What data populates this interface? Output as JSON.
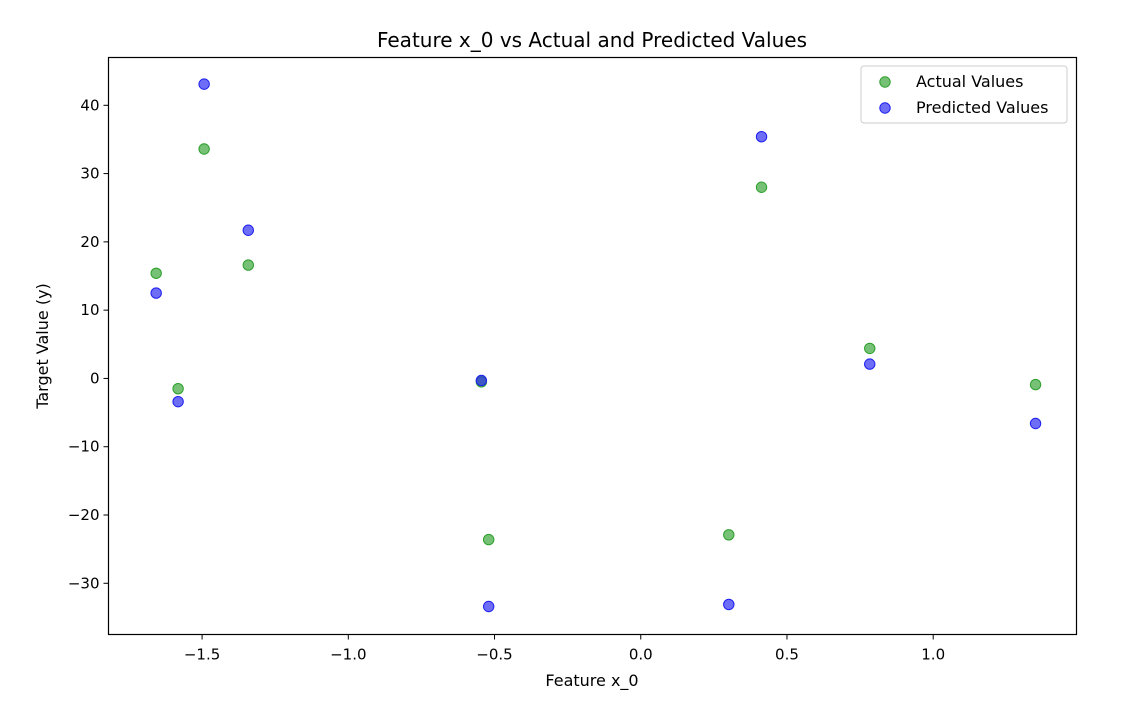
{
  "chart_data": {
    "type": "scatter",
    "title": "Feature x_0 vs Actual and Predicted Values",
    "xlabel": "Feature x_0",
    "ylabel": "Target Value (y)",
    "xlim": [
      -1.82,
      1.49
    ],
    "ylim": [
      -37.5,
      47
    ],
    "xticks": [
      -1.5,
      -1.0,
      -0.5,
      0.0,
      0.5,
      1.0
    ],
    "xtick_labels": [
      "−1.5",
      "−1.0",
      "−0.5",
      "0.0",
      "0.5",
      "1.0"
    ],
    "yticks": [
      -30,
      -20,
      -10,
      0,
      10,
      20,
      30,
      40
    ],
    "ytick_labels": [
      "−30",
      "−20",
      "−10",
      "0",
      "10",
      "20",
      "30",
      "40"
    ],
    "grid": false,
    "legend_position": "top-right",
    "series": [
      {
        "name": "Actual Values",
        "color": "#2ca02c",
        "points": [
          {
            "x": -1.657,
            "y": 15.4
          },
          {
            "x": -1.582,
            "y": -1.5
          },
          {
            "x": -1.493,
            "y": 33.6
          },
          {
            "x": -1.342,
            "y": 16.6
          },
          {
            "x": -0.545,
            "y": -0.5
          },
          {
            "x": -0.52,
            "y": -23.6
          },
          {
            "x": 0.301,
            "y": -22.9
          },
          {
            "x": 0.413,
            "y": 28.0
          },
          {
            "x": 0.783,
            "y": 4.4
          },
          {
            "x": 1.35,
            "y": -0.9
          }
        ]
      },
      {
        "name": "Predicted Values",
        "color": "#1f1fef",
        "points": [
          {
            "x": -1.657,
            "y": 12.5
          },
          {
            "x": -1.582,
            "y": -3.4
          },
          {
            "x": -1.493,
            "y": 43.1
          },
          {
            "x": -1.342,
            "y": 21.7
          },
          {
            "x": -0.545,
            "y": -0.3
          },
          {
            "x": -0.52,
            "y": -33.4
          },
          {
            "x": 0.301,
            "y": -33.1
          },
          {
            "x": 0.413,
            "y": 35.4
          },
          {
            "x": 0.783,
            "y": 2.1
          },
          {
            "x": 1.35,
            "y": -6.6
          }
        ]
      }
    ]
  }
}
